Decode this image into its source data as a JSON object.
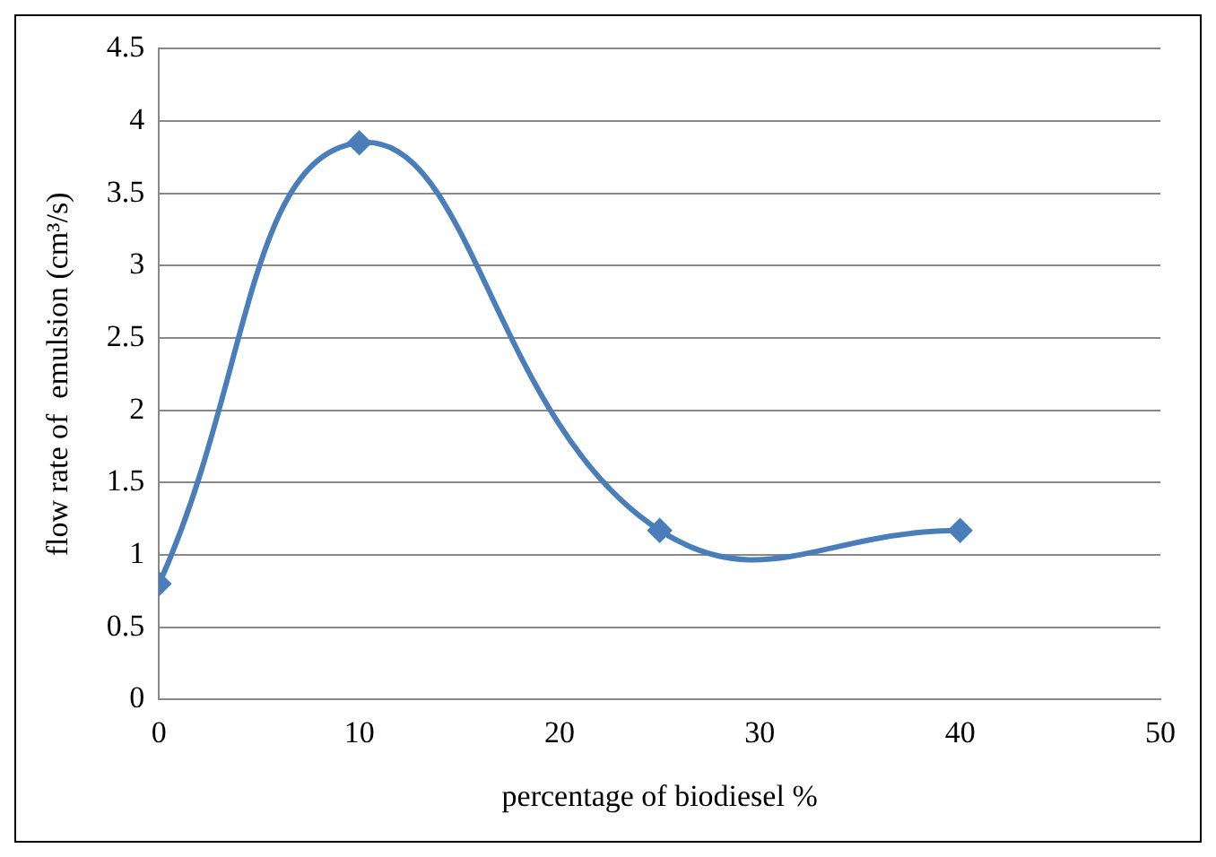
{
  "chart_data": {
    "type": "line",
    "xlabel": "percentage of biodiesel %",
    "ylabel": "flow rate of  emulsion (cm³/s)",
    "x": [
      0,
      10,
      25,
      40
    ],
    "series": [
      {
        "color": "#4a7ebb",
        "values": [
          0.8,
          3.85,
          1.17,
          1.17
        ]
      }
    ],
    "xlim": [
      0,
      50
    ],
    "xticks": [
      0,
      10,
      20,
      30,
      40,
      50
    ],
    "ylim": [
      0,
      4.5
    ],
    "yticks": [
      0,
      0.5,
      1,
      1.5,
      2,
      2.5,
      3,
      3.5,
      4,
      4.5
    ],
    "grid": "y",
    "marker": "diamond",
    "line_style": "solid",
    "legend": false
  }
}
